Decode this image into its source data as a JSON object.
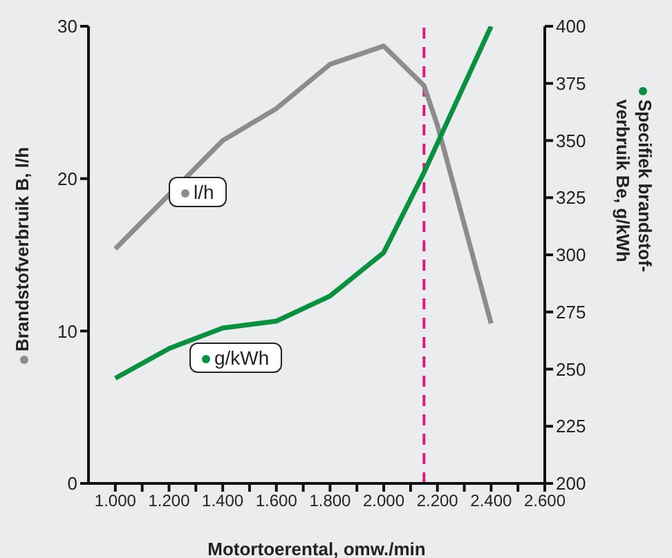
{
  "chart_data": {
    "type": "line",
    "xlabel": "Motortoerental, omw./min",
    "ylabel": "Brandstofverbruik B, l/h",
    "y2label": "Specifiek brandstof-\nverbruik Be, g/kWh",
    "xlim": [
      900,
      2600
    ],
    "xticks": [
      {
        "value": 1000,
        "label": "1.000"
      },
      {
        "value": 1100,
        "label": null
      },
      {
        "value": 1200,
        "label": "1.200"
      },
      {
        "value": 1300,
        "label": null
      },
      {
        "value": 1400,
        "label": "1.400"
      },
      {
        "value": 1500,
        "label": null
      },
      {
        "value": 1600,
        "label": "1.600"
      },
      {
        "value": 1700,
        "label": null
      },
      {
        "value": 1800,
        "label": "1.800"
      },
      {
        "value": 1900,
        "label": null
      },
      {
        "value": 2000,
        "label": "2.000"
      },
      {
        "value": 2100,
        "label": null
      },
      {
        "value": 2200,
        "label": "2.200"
      },
      {
        "value": 2300,
        "label": null
      },
      {
        "value": 2400,
        "label": "2.400"
      },
      {
        "value": 2500,
        "label": null
      },
      {
        "value": 2600,
        "label": "2.600"
      }
    ],
    "ylim": [
      0,
      30
    ],
    "yticks": [
      0,
      10,
      20,
      30
    ],
    "y2lim": [
      200,
      400
    ],
    "y2ticks": [
      200,
      225,
      250,
      275,
      300,
      325,
      350,
      375,
      400
    ],
    "series": [
      {
        "name": "l/h",
        "color": "#8c8c8c",
        "x": [
          1000,
          1400,
          1600,
          1800,
          2000,
          2150,
          2200,
          2400
        ],
        "values": [
          15.4,
          22.5,
          24.6,
          27.5,
          28.7,
          26.1,
          23.5,
          10.5
        ]
      },
      {
        "name": "g/kWh",
        "color": "#0a9140",
        "axis": "y2",
        "x": [
          1000,
          1200,
          1400,
          1600,
          1800,
          2000,
          2150,
          2400
        ],
        "values": [
          246,
          259,
          268,
          271,
          282,
          301,
          336,
          400
        ]
      }
    ],
    "ref_lines": [
      {
        "axis": "x",
        "value": 2150,
        "color": "#e0197d",
        "line_style": "dashed"
      }
    ],
    "legend": "center left"
  }
}
